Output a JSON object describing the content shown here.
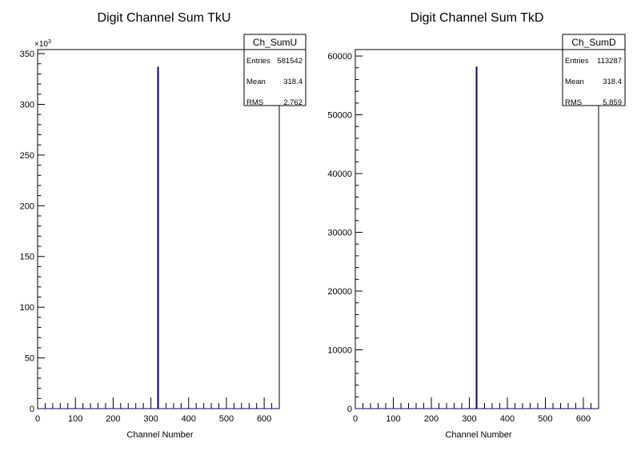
{
  "chart_data": [
    {
      "type": "bar",
      "title": "Digit Channel Sum TkU",
      "xlabel": "Channel Number",
      "ylabel": "",
      "xlim": [
        0,
        640
      ],
      "ylim": [
        0,
        354000
      ],
      "x_ticks": [
        "0",
        "100",
        "200",
        "300",
        "400",
        "500",
        "600"
      ],
      "y_ticks": [
        "0",
        "50",
        "100",
        "150",
        "200",
        "250",
        "300",
        "350"
      ],
      "y_multiplier": "×10",
      "y_multiplier_exp": "3",
      "bars": [
        {
          "x": 319,
          "y": 337000
        }
      ],
      "bar_color": "#000080",
      "stats": {
        "name": "Ch_SumU",
        "rows": [
          {
            "label": "Entries",
            "value": "581542"
          },
          {
            "label": "Mean",
            "value": "318.4"
          },
          {
            "label": "RMS",
            "value": "2.762"
          }
        ]
      }
    },
    {
      "type": "bar",
      "title": "Digit Channel Sum TkD",
      "xlabel": "Channel Number",
      "ylabel": "",
      "xlim": [
        0,
        640
      ],
      "ylim": [
        0,
        61100
      ],
      "x_ticks": [
        "0",
        "100",
        "200",
        "300",
        "400",
        "500",
        "600"
      ],
      "y_ticks": [
        "0",
        "10000",
        "20000",
        "30000",
        "40000",
        "50000",
        "60000"
      ],
      "bars": [
        {
          "x": 319,
          "y": 58200
        }
      ],
      "bar_color": "#000080",
      "stats": {
        "name": "Ch_SumD",
        "rows": [
          {
            "label": "Entries",
            "value": "113287"
          },
          {
            "label": "Mean",
            "value": "318.4"
          },
          {
            "label": "RMS",
            "value": "5.859"
          }
        ]
      }
    }
  ]
}
